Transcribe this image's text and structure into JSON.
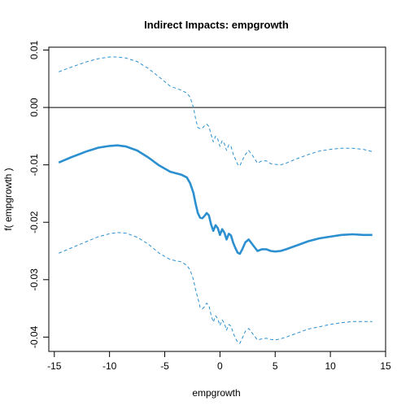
{
  "chart_data": {
    "type": "line",
    "title": "Indirect Impacts:  empgrowth",
    "xlabel": "empgrowth",
    "ylabel": "f( empgrowth )",
    "xlim": [
      -15.5,
      15
    ],
    "ylim": [
      -0.0425,
      0.0105
    ],
    "x_ticks": [
      -15,
      -10,
      -5,
      0,
      5,
      10,
      15
    ],
    "x_tick_labels": [
      "-15",
      "-10",
      "-5",
      "0",
      "5",
      "10",
      "15"
    ],
    "y_ticks": [
      -0.04,
      -0.03,
      -0.02,
      -0.01,
      0.0,
      0.01
    ],
    "y_tick_labels": [
      "-0.04",
      "-0.03",
      "-0.02",
      "-0.01",
      "0.00",
      "0.01"
    ],
    "reference_line_y": 0,
    "grid": false,
    "colors": {
      "series": "#2b8fd0",
      "reference": "#000000",
      "axis": "#000000"
    },
    "series": [
      {
        "role": "estimate",
        "style": "solid",
        "x": [
          -14.6,
          -13.5,
          -12.0,
          -11.0,
          -10.0,
          -9.3,
          -8.5,
          -7.5,
          -6.5,
          -5.5,
          -4.5,
          -3.5,
          -3.0,
          -2.7,
          -2.4,
          -2.2,
          -2.0,
          -1.8,
          -1.6,
          -1.4,
          -1.2,
          -1.0,
          -0.8,
          -0.6,
          -0.4,
          -0.2,
          0.0,
          0.2,
          0.4,
          0.6,
          0.8,
          1.0,
          1.2,
          1.4,
          1.6,
          1.8,
          2.0,
          2.3,
          2.6,
          3.0,
          3.4,
          3.8,
          4.2,
          4.6,
          5.0,
          5.5,
          6.0,
          7.0,
          8.0,
          9.0,
          10.0,
          11.0,
          12.0,
          13.0,
          13.8
        ],
        "values": [
          -0.0096,
          -0.0087,
          -0.0076,
          -0.007,
          -0.0067,
          -0.0066,
          -0.0068,
          -0.0075,
          -0.0087,
          -0.0101,
          -0.0112,
          -0.0117,
          -0.0122,
          -0.0132,
          -0.0149,
          -0.0168,
          -0.0184,
          -0.0192,
          -0.0193,
          -0.0189,
          -0.0184,
          -0.0188,
          -0.0204,
          -0.0215,
          -0.0205,
          -0.021,
          -0.0222,
          -0.0212,
          -0.0218,
          -0.023,
          -0.022,
          -0.0223,
          -0.0236,
          -0.0245,
          -0.0253,
          -0.0255,
          -0.0248,
          -0.0235,
          -0.023,
          -0.024,
          -0.025,
          -0.0247,
          -0.0247,
          -0.025,
          -0.0251,
          -0.025,
          -0.0247,
          -0.024,
          -0.0233,
          -0.0228,
          -0.0225,
          -0.0222,
          -0.0221,
          -0.0222,
          -0.0222
        ]
      },
      {
        "role": "upper-bound",
        "style": "dashed",
        "x": [
          -14.6,
          -13.5,
          -12.0,
          -11.0,
          -10.0,
          -9.3,
          -8.5,
          -7.5,
          -6.5,
          -5.5,
          -4.5,
          -3.5,
          -3.0,
          -2.7,
          -2.4,
          -2.2,
          -2.0,
          -1.8,
          -1.6,
          -1.4,
          -1.2,
          -1.0,
          -0.8,
          -0.6,
          -0.4,
          -0.2,
          0.0,
          0.2,
          0.4,
          0.6,
          0.8,
          1.0,
          1.2,
          1.4,
          1.6,
          1.8,
          2.0,
          2.3,
          2.6,
          3.0,
          3.4,
          3.8,
          4.2,
          4.6,
          5.0,
          5.5,
          6.0,
          7.0,
          8.0,
          9.0,
          10.0,
          11.0,
          12.0,
          13.0,
          13.8
        ],
        "values": [
          0.0062,
          0.007,
          0.008,
          0.0085,
          0.0088,
          0.0088,
          0.0086,
          0.008,
          0.0068,
          0.0053,
          0.0037,
          0.003,
          0.0025,
          0.0018,
          0.0,
          -0.002,
          -0.0035,
          -0.0037,
          -0.0036,
          -0.0032,
          -0.0029,
          -0.0033,
          -0.0047,
          -0.006,
          -0.005,
          -0.0055,
          -0.0068,
          -0.0058,
          -0.0063,
          -0.0075,
          -0.0065,
          -0.0068,
          -0.0081,
          -0.009,
          -0.0099,
          -0.0102,
          -0.0093,
          -0.0082,
          -0.0075,
          -0.0085,
          -0.0097,
          -0.0093,
          -0.0093,
          -0.0098,
          -0.0099,
          -0.01,
          -0.0097,
          -0.0089,
          -0.0082,
          -0.0076,
          -0.0073,
          -0.0071,
          -0.0071,
          -0.0073,
          -0.0077
        ]
      },
      {
        "role": "lower-bound",
        "style": "dashed",
        "x": [
          -14.6,
          -13.5,
          -12.0,
          -11.0,
          -10.0,
          -9.3,
          -8.5,
          -7.5,
          -6.5,
          -5.5,
          -4.5,
          -3.5,
          -3.0,
          -2.7,
          -2.4,
          -2.2,
          -2.0,
          -1.8,
          -1.6,
          -1.4,
          -1.2,
          -1.0,
          -0.8,
          -0.6,
          -0.4,
          -0.2,
          0.0,
          0.2,
          0.4,
          0.6,
          0.8,
          1.0,
          1.2,
          1.4,
          1.6,
          1.8,
          2.0,
          2.3,
          2.6,
          3.0,
          3.4,
          3.8,
          4.2,
          4.6,
          5.0,
          5.5,
          6.0,
          7.0,
          8.0,
          9.0,
          10.0,
          11.0,
          12.0,
          13.0,
          13.8
        ],
        "values": [
          -0.0254,
          -0.0245,
          -0.0233,
          -0.0225,
          -0.022,
          -0.0218,
          -0.0219,
          -0.0226,
          -0.0238,
          -0.0254,
          -0.0265,
          -0.0269,
          -0.0275,
          -0.0283,
          -0.03,
          -0.0318,
          -0.0332,
          -0.0348,
          -0.0351,
          -0.0347,
          -0.0341,
          -0.0345,
          -0.0362,
          -0.0374,
          -0.0363,
          -0.0368,
          -0.038,
          -0.037,
          -0.0376,
          -0.0388,
          -0.0378,
          -0.0381,
          -0.0393,
          -0.0402,
          -0.0409,
          -0.0411,
          -0.0403,
          -0.039,
          -0.0385,
          -0.0395,
          -0.0405,
          -0.0403,
          -0.0402,
          -0.0404,
          -0.0405,
          -0.0403,
          -0.04,
          -0.0393,
          -0.0386,
          -0.0382,
          -0.0378,
          -0.0375,
          -0.0373,
          -0.0373,
          -0.0373
        ]
      }
    ]
  }
}
